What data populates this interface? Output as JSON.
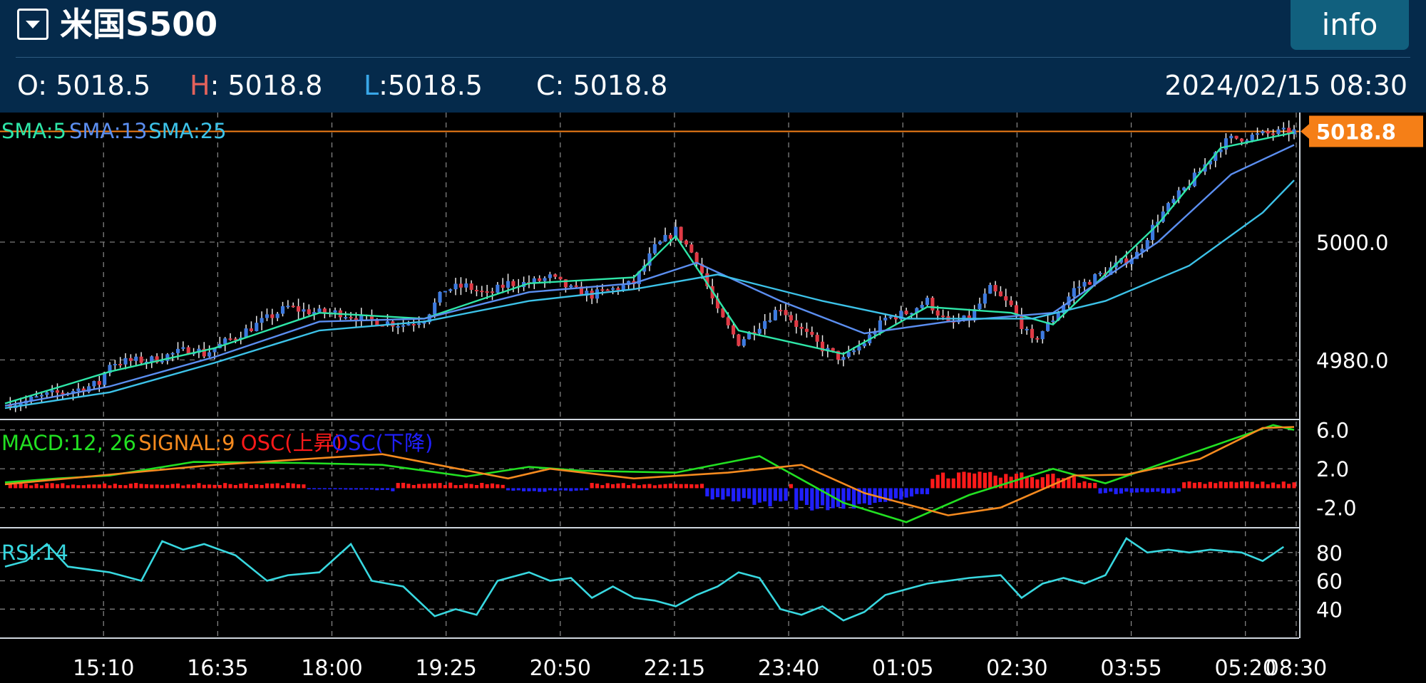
{
  "header": {
    "title": "米国S500",
    "info_label": "info",
    "datetime": "2024/02/15 08:30",
    "ohlc": [
      {
        "key": "O",
        "sep": ":",
        "value": "5018.5"
      },
      {
        "key": "H",
        "sep": ":",
        "value": "5018.8"
      },
      {
        "key": "L",
        "sep": ":",
        "value": "5018.5"
      },
      {
        "key": "C",
        "sep": ":",
        "value": "5018.8"
      }
    ]
  },
  "colors": {
    "header_bg": "#052a4b",
    "up": "#3d7ae0",
    "down": "#e03a45",
    "sma5": "#2ee6a8",
    "sma13": "#5b8ef0",
    "sma25": "#3cc2e8",
    "macd": "#22e022",
    "signal": "#f58a1f",
    "osc_up": "#ff1a1a",
    "osc_down": "#2020ff",
    "rsi": "#38d8e0",
    "last_price": "#f57f17"
  },
  "chart_data": [
    {
      "type": "candlestick",
      "name": "price",
      "x_labels": [
        "15:10",
        "16:35",
        "18:00",
        "19:25",
        "20:50",
        "22:15",
        "23:40",
        "01:05",
        "02:30",
        "03:55",
        "05:20",
        "08:30"
      ],
      "legend": [
        "SMA:5",
        "SMA:13",
        "SMA:25"
      ],
      "y_ticks": [
        "5000.0",
        "4980.0"
      ],
      "y_tick_values": [
        5000.0,
        4980.0
      ],
      "ylim": [
        4970,
        5022
      ],
      "last_price": "5018.8",
      "last_price_value": 5018.8,
      "close_path": [
        [
          0,
          4972.5
        ],
        [
          4,
          4973
        ],
        [
          8,
          4974
        ],
        [
          12,
          4974.6
        ],
        [
          16,
          4975.5
        ],
        [
          18,
          4976
        ],
        [
          20,
          4979.5
        ],
        [
          24,
          4979.8
        ],
        [
          28,
          4980
        ],
        [
          32,
          4981
        ],
        [
          36,
          4982
        ],
        [
          38,
          4981
        ],
        [
          42,
          4983
        ],
        [
          46,
          4985
        ],
        [
          50,
          4987
        ],
        [
          54,
          4989
        ],
        [
          56,
          4988.5
        ],
        [
          60,
          4988
        ],
        [
          64,
          4988
        ],
        [
          68,
          4987
        ],
        [
          72,
          4986.5
        ],
        [
          76,
          4986
        ],
        [
          80,
          4987
        ],
        [
          84,
          4992
        ],
        [
          88,
          4992.5
        ],
        [
          92,
          4991
        ],
        [
          96,
          4993
        ],
        [
          100,
          4993
        ],
        [
          104,
          4994
        ],
        [
          108,
          4992
        ],
        [
          112,
          4991
        ],
        [
          116,
          4992
        ],
        [
          120,
          4993
        ],
        [
          124,
          4999
        ],
        [
          128,
          5002
        ],
        [
          132,
          4997
        ],
        [
          136,
          4988
        ],
        [
          140,
          4983
        ],
        [
          144,
          4986
        ],
        [
          148,
          4989
        ],
        [
          152,
          4985
        ],
        [
          156,
          4982
        ],
        [
          160,
          4980
        ],
        [
          164,
          4983
        ],
        [
          168,
          4987
        ],
        [
          172,
          4988
        ],
        [
          176,
          4990
        ],
        [
          180,
          4986
        ],
        [
          184,
          4987
        ],
        [
          188,
          4992
        ],
        [
          192,
          4989
        ],
        [
          196,
          4983
        ],
        [
          200,
          4987
        ],
        [
          204,
          4992
        ],
        [
          208,
          4994
        ],
        [
          212,
          4996
        ],
        [
          216,
          4998
        ],
        [
          220,
          5004
        ],
        [
          224,
          5008
        ],
        [
          228,
          5012
        ],
        [
          232,
          5016.5
        ],
        [
          234,
          5017.5
        ],
        [
          238,
          5018
        ],
        [
          242,
          5018.5
        ],
        [
          246,
          5018.8
        ]
      ],
      "series": [
        {
          "name": "SMA:5",
          "values": [
            [
              0,
              4972.6
            ],
            [
              20,
              4978
            ],
            [
              40,
              4982
            ],
            [
              60,
              4988
            ],
            [
              80,
              4987
            ],
            [
              100,
              4993
            ],
            [
              120,
              4994
            ],
            [
              128,
              5001
            ],
            [
              140,
              4985
            ],
            [
              160,
              4981
            ],
            [
              176,
              4989
            ],
            [
              192,
              4988
            ],
            [
              200,
              4986
            ],
            [
              220,
              5003
            ],
            [
              232,
              5016
            ],
            [
              246,
              5018.6
            ]
          ]
        },
        {
          "name": "SMA:13",
          "values": [
            [
              0,
              4972.2
            ],
            [
              20,
              4975.5
            ],
            [
              40,
              4980.5
            ],
            [
              60,
              4986.5
            ],
            [
              80,
              4987
            ],
            [
              100,
              4991.5
            ],
            [
              120,
              4993
            ],
            [
              132,
              4996.5
            ],
            [
              148,
              4990
            ],
            [
              164,
              4984.5
            ],
            [
              180,
              4986.5
            ],
            [
              200,
              4988
            ],
            [
              220,
              5000
            ],
            [
              234,
              5011.5
            ],
            [
              246,
              5016.5
            ]
          ]
        },
        {
          "name": "SMA:25",
          "values": [
            [
              0,
              4971.8
            ],
            [
              20,
              4974.5
            ],
            [
              40,
              4979.5
            ],
            [
              60,
              4985
            ],
            [
              80,
              4986.5
            ],
            [
              100,
              4990
            ],
            [
              120,
              4992
            ],
            [
              136,
              4994.5
            ],
            [
              156,
              4990
            ],
            [
              172,
              4987
            ],
            [
              196,
              4987
            ],
            [
              210,
              4990
            ],
            [
              226,
              4996
            ],
            [
              240,
              5005
            ],
            [
              246,
              5010.5
            ]
          ]
        }
      ]
    },
    {
      "type": "line",
      "name": "macd",
      "legend": [
        "MACD:12, 26",
        "SIGNAL:9",
        "OSC(上昇)",
        "OSC(下降)"
      ],
      "y_ticks": [
        "6.0",
        "2.0",
        "-2.0"
      ],
      "y_tick_values": [
        6.0,
        2.0,
        -2.0
      ],
      "ylim": [
        -4.0,
        7.0
      ],
      "series": [
        {
          "name": "MACD:12, 26",
          "values": [
            [
              0,
              0.6
            ],
            [
              10,
              1.0
            ],
            [
              20,
              1.3
            ],
            [
              36,
              2.7
            ],
            [
              56,
              2.6
            ],
            [
              72,
              2.4
            ],
            [
              88,
              1.2
            ],
            [
              100,
              2.2
            ],
            [
              110,
              1.8
            ],
            [
              128,
              1.6
            ],
            [
              144,
              3.3
            ],
            [
              160,
              -1.5
            ],
            [
              172,
              -3.5
            ],
            [
              184,
              -0.7
            ],
            [
              200,
              2.0
            ],
            [
              210,
              0.5
            ],
            [
              226,
              3.5
            ],
            [
              242,
              6.5
            ],
            [
              246,
              6.0
            ]
          ]
        },
        {
          "name": "SIGNAL:9",
          "values": [
            [
              0,
              0.4
            ],
            [
              16,
              1.2
            ],
            [
              40,
              2.4
            ],
            [
              72,
              3.5
            ],
            [
              96,
              1.0
            ],
            [
              104,
              2.0
            ],
            [
              120,
              1.0
            ],
            [
              138,
              1.6
            ],
            [
              152,
              2.4
            ],
            [
              164,
              -0.5
            ],
            [
              180,
              -2.8
            ],
            [
              190,
              -2.0
            ],
            [
              204,
              1.3
            ],
            [
              214,
              1.4
            ],
            [
              228,
              3.0
            ],
            [
              240,
              6.2
            ],
            [
              246,
              6.3
            ]
          ]
        },
        {
          "name": "OSC(上昇)",
          "values": [
            [
              32,
              0.8
            ],
            [
              104,
              0.9
            ],
            [
              136,
              0.7
            ],
            [
              180,
              1.6
            ],
            [
              204,
              1.4
            ],
            [
              224,
              1.2
            ],
            [
              238,
              1.1
            ]
          ]
        },
        {
          "name": "OSC(下降)",
          "values": [
            [
              30,
              0.5
            ],
            [
              80,
              -0.4
            ],
            [
              120,
              -0.3
            ],
            [
              158,
              -2.4
            ],
            [
              172,
              -1.0
            ],
            [
              210,
              -0.6
            ],
            [
              244,
              -0.3
            ]
          ]
        }
      ]
    },
    {
      "type": "line",
      "name": "rsi",
      "legend": [
        "RSI:14"
      ],
      "y_ticks": [
        "80",
        "60",
        "40"
      ],
      "y_tick_values": [
        80,
        60,
        40
      ],
      "ylim": [
        20,
        97
      ],
      "series": [
        {
          "name": "RSI:14",
          "values": [
            [
              0,
              70
            ],
            [
              4,
              74
            ],
            [
              8,
              86
            ],
            [
              12,
              70
            ],
            [
              16,
              68
            ],
            [
              20,
              66
            ],
            [
              26,
              60
            ],
            [
              30,
              88
            ],
            [
              34,
              82
            ],
            [
              38,
              86
            ],
            [
              44,
              78
            ],
            [
              50,
              60
            ],
            [
              54,
              64
            ],
            [
              60,
              66
            ],
            [
              66,
              86
            ],
            [
              70,
              60
            ],
            [
              76,
              56
            ],
            [
              82,
              35
            ],
            [
              86,
              40
            ],
            [
              90,
              36
            ],
            [
              94,
              60
            ],
            [
              100,
              66
            ],
            [
              104,
              60
            ],
            [
              108,
              62
            ],
            [
              112,
              48
            ],
            [
              116,
              56
            ],
            [
              120,
              48
            ],
            [
              124,
              46
            ],
            [
              128,
              42
            ],
            [
              132,
              50
            ],
            [
              136,
              56
            ],
            [
              140,
              66
            ],
            [
              144,
              62
            ],
            [
              148,
              40
            ],
            [
              152,
              36
            ],
            [
              156,
              42
            ],
            [
              160,
              32
            ],
            [
              164,
              38
            ],
            [
              168,
              50
            ],
            [
              172,
              54
            ],
            [
              176,
              58
            ],
            [
              180,
              60
            ],
            [
              184,
              62
            ],
            [
              190,
              64
            ],
            [
              194,
              48
            ],
            [
              198,
              58
            ],
            [
              202,
              62
            ],
            [
              206,
              58
            ],
            [
              210,
              64
            ],
            [
              214,
              90
            ],
            [
              218,
              80
            ],
            [
              222,
              82
            ],
            [
              226,
              80
            ],
            [
              230,
              82
            ],
            [
              236,
              80
            ],
            [
              240,
              74
            ],
            [
              244,
              84
            ]
          ]
        }
      ]
    }
  ]
}
